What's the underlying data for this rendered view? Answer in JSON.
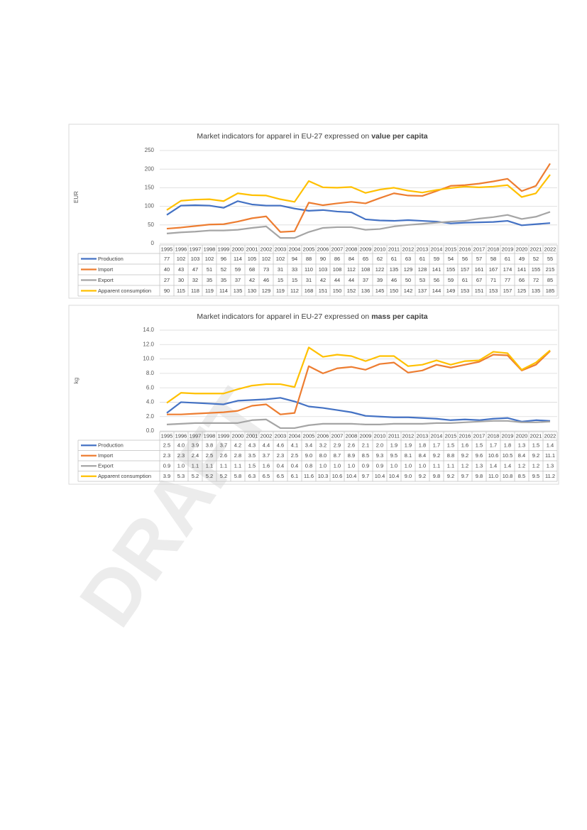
{
  "watermark": "DRAFT",
  "chart_data": [
    {
      "type": "line",
      "title": "Market indicators for apparel in EU-27 expressed on",
      "title_emphasis": "value per capita",
      "ylabel": "EUR",
      "ylim": [
        0,
        250
      ],
      "yticks": [
        0,
        50,
        100,
        150,
        200,
        250
      ],
      "grid": true,
      "categories": [
        "1995",
        "1996",
        "1997",
        "1998",
        "1999",
        "2000",
        "2001",
        "2002",
        "2003",
        "2004",
        "2005",
        "2006",
        "2007",
        "2008",
        "2009",
        "2010",
        "2011",
        "2012",
        "2013",
        "2014",
        "2015",
        "2016",
        "2017",
        "2018",
        "2019",
        "2020",
        "2021",
        "2022"
      ],
      "series": [
        {
          "name": "Production",
          "color": "#4472c4",
          "values": [
            77,
            102,
            103,
            102,
            96,
            114,
            105,
            102,
            102,
            94,
            88,
            90,
            86,
            84,
            65,
            62,
            61,
            63,
            61,
            59,
            54,
            56,
            57,
            58,
            61,
            49,
            52,
            55
          ]
        },
        {
          "name": "Import",
          "color": "#ed7d31",
          "values": [
            40,
            43,
            47,
            51,
            52,
            59,
            68,
            73,
            31,
            33,
            110,
            103,
            108,
            112,
            108,
            122,
            135,
            129,
            128,
            141,
            155,
            157,
            161,
            167,
            174,
            141,
            155,
            215
          ]
        },
        {
          "name": "Export",
          "color": "#a5a5a5",
          "values": [
            27,
            30,
            32,
            35,
            35,
            37,
            42,
            46,
            15,
            15,
            31,
            42,
            44,
            44,
            37,
            39,
            46,
            50,
            53,
            56,
            59,
            61,
            67,
            71,
            77,
            66,
            72,
            85
          ]
        },
        {
          "name": "Apparent consumption",
          "color": "#ffc000",
          "values": [
            90,
            115,
            118,
            119,
            114,
            135,
            130,
            129,
            119,
            112,
            168,
            151,
            150,
            152,
            136,
            145,
            150,
            142,
            137,
            144,
            149,
            153,
            151,
            153,
            157,
            125,
            135,
            185
          ]
        }
      ]
    },
    {
      "type": "line",
      "title": "Market indicators for apparel in EU-27 expressed on",
      "title_emphasis": "mass per capita",
      "ylabel": "kg",
      "ylim": [
        0,
        14
      ],
      "yticks": [
        {
          "value": 0,
          "label": "0.0"
        },
        {
          "value": 2,
          "label": "2.0"
        },
        {
          "value": 4,
          "label": "4.0"
        },
        {
          "value": 6,
          "label": "6.0"
        },
        {
          "value": 8,
          "label": "8.0"
        },
        {
          "value": 10,
          "label": "10.0"
        },
        {
          "value": 12,
          "label": "12.0"
        },
        {
          "value": 14,
          "label": "14.0"
        }
      ],
      "grid": true,
      "categories": [
        "1995",
        "1996",
        "1997",
        "1998",
        "1999",
        "2000",
        "2001",
        "2002",
        "2003",
        "2004",
        "2005",
        "2006",
        "2007",
        "2008",
        "2009",
        "2010",
        "2011",
        "2012",
        "2013",
        "2014",
        "2015",
        "2016",
        "2017",
        "2018",
        "2019",
        "2020",
        "2021",
        "2022"
      ],
      "series": [
        {
          "name": "Production",
          "color": "#4472c4",
          "values": [
            2.5,
            4.0,
            3.9,
            3.8,
            3.7,
            4.2,
            4.3,
            4.4,
            4.6,
            4.1,
            3.4,
            3.2,
            2.9,
            2.6,
            2.1,
            2.0,
            1.9,
            1.9,
            1.8,
            1.7,
            1.5,
            1.6,
            1.5,
            1.7,
            1.8,
            1.3,
            1.5,
            1.4
          ],
          "value_labels": [
            "2.5",
            "4.0",
            "3.9",
            "3.8",
            "3.7",
            "4.2",
            "4.3",
            "4.4",
            "4.6",
            "4.1",
            "3.4",
            "3.2",
            "2.9",
            "2.6",
            "2.1",
            "2.0",
            "1.9",
            "1.9",
            "1.8",
            "1.7",
            "1.5",
            "1.6",
            "1.5",
            "1.7",
            "1.8",
            "1.3",
            "1.5",
            "1.4"
          ]
        },
        {
          "name": "Import",
          "color": "#ed7d31",
          "values": [
            2.3,
            2.3,
            2.4,
            2.5,
            2.6,
            2.8,
            3.5,
            3.7,
            2.3,
            2.5,
            9.0,
            8.0,
            8.7,
            8.9,
            8.5,
            9.3,
            9.5,
            8.1,
            8.4,
            9.2,
            8.8,
            9.2,
            9.6,
            10.6,
            10.5,
            8.4,
            9.2,
            11.1
          ],
          "value_labels": [
            "2.3",
            "2.3",
            "2.4",
            "2.5",
            "2.6",
            "2.8",
            "3.5",
            "3.7",
            "2.3",
            "2.5",
            "9.0",
            "8.0",
            "8.7",
            "8.9",
            "8.5",
            "9.3",
            "9.5",
            "8.1",
            "8.4",
            "9.2",
            "8.8",
            "9.2",
            "9.6",
            "10.6",
            "10.5",
            "8.4",
            "9.2",
            "11.1"
          ]
        },
        {
          "name": "Export",
          "color": "#a5a5a5",
          "values": [
            0.9,
            1.0,
            1.1,
            1.1,
            1.1,
            1.1,
            1.5,
            1.6,
            0.4,
            0.4,
            0.8,
            1.0,
            1.0,
            1.0,
            0.9,
            0.9,
            1.0,
            1.0,
            1.0,
            1.1,
            1.1,
            1.2,
            1.3,
            1.4,
            1.4,
            1.2,
            1.2,
            1.3
          ],
          "value_labels": [
            "0.9",
            "1.0",
            "1.1",
            "1.1",
            "1.1",
            "1.1",
            "1.5",
            "1.6",
            "0.4",
            "0.4",
            "0.8",
            "1.0",
            "1.0",
            "1.0",
            "0.9",
            "0.9",
            "1.0",
            "1.0",
            "1.0",
            "1.1",
            "1.1",
            "1.2",
            "1.3",
            "1.4",
            "1.4",
            "1.2",
            "1.2",
            "1.3"
          ]
        },
        {
          "name": "Apparent consumption",
          "color": "#ffc000",
          "values": [
            3.9,
            5.3,
            5.2,
            5.2,
            5.2,
            5.8,
            6.3,
            6.5,
            6.5,
            6.1,
            11.6,
            10.3,
            10.6,
            10.4,
            9.7,
            10.4,
            10.4,
            9.0,
            9.2,
            9.8,
            9.2,
            9.7,
            9.8,
            11.0,
            10.8,
            8.5,
            9.5,
            11.2
          ],
          "value_labels": [
            "3.9",
            "5.3",
            "5.2",
            "5.2",
            "5.2",
            "5.8",
            "6.3",
            "6.5",
            "6.5",
            "6.1",
            "11.6",
            "10.3",
            "10.6",
            "10.4",
            "9.7",
            "10.4",
            "10.4",
            "9.0",
            "9.2",
            "9.8",
            "9.2",
            "9.7",
            "9.8",
            "11.0",
            "10.8",
            "8.5",
            "9.5",
            "11.2"
          ]
        }
      ]
    }
  ]
}
